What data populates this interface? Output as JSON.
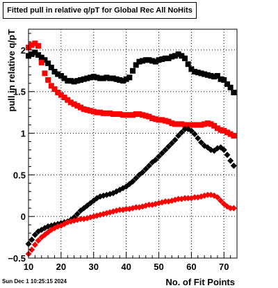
{
  "title": "Fitted pull in relative q/pT for Global Rec All NoHits",
  "timestamp": "Sun Dec  1 10:25:15 2024",
  "chart_data": {
    "type": "scatter",
    "title": "Fitted pull in relative q/pT for Global Rec All NoHits",
    "xlabel": "No. of Fit Points",
    "ylabel": "pull in relative q/pT",
    "xlim": [
      10,
      74
    ],
    "ylim": [
      -0.5,
      2.25
    ],
    "xticks": [
      10,
      20,
      30,
      40,
      50,
      60,
      70
    ],
    "xtick_labels": [
      "10",
      "20",
      "30",
      "40",
      "50",
      "60",
      "70"
    ],
    "yticks": [
      -0.5,
      0,
      0.5,
      1,
      1.5,
      2
    ],
    "ytick_labels": [
      "−0.5",
      "0",
      "0.5",
      "1",
      "1.5",
      "2"
    ],
    "grid": true,
    "colors": {
      "black": "#000000",
      "red": "#ff0000"
    },
    "series": [
      {
        "marker": "square",
        "color": "#000000",
        "x": [
          10,
          11,
          12,
          13,
          14,
          15,
          16,
          17,
          18,
          19,
          20,
          21,
          22,
          23,
          24,
          25,
          26,
          27,
          28,
          29,
          30,
          31,
          32,
          33,
          34,
          35,
          36,
          37,
          38,
          39,
          40,
          41,
          42,
          43,
          44,
          45,
          46,
          47,
          48,
          49,
          50,
          51,
          52,
          53,
          54,
          55,
          56,
          57,
          58,
          59,
          60,
          61,
          62,
          63,
          64,
          65,
          66,
          67,
          68,
          69,
          70,
          71,
          72,
          73
        ],
        "y": [
          1.93,
          1.95,
          1.97,
          1.94,
          1.91,
          1.88,
          1.84,
          1.79,
          1.74,
          1.71,
          1.69,
          1.66,
          1.63,
          1.63,
          1.62,
          1.63,
          1.64,
          1.65,
          1.66,
          1.67,
          1.68,
          1.67,
          1.66,
          1.66,
          1.67,
          1.66,
          1.66,
          1.65,
          1.64,
          1.63,
          1.65,
          1.67,
          1.75,
          1.82,
          1.86,
          1.87,
          1.88,
          1.88,
          1.87,
          1.86,
          1.88,
          1.89,
          1.9,
          1.9,
          1.92,
          1.93,
          1.95,
          1.93,
          1.9,
          1.83,
          1.77,
          1.74,
          1.73,
          1.72,
          1.71,
          1.7,
          1.69,
          1.68,
          1.69,
          1.65,
          1.64,
          1.59,
          1.55,
          1.49
        ]
      },
      {
        "marker": "square",
        "color": "#ff0000",
        "x": [
          10,
          11,
          12,
          13,
          14,
          15,
          16,
          17,
          18,
          19,
          20,
          21,
          22,
          23,
          24,
          25,
          26,
          27,
          28,
          29,
          30,
          31,
          32,
          33,
          34,
          35,
          36,
          37,
          38,
          39,
          40,
          41,
          42,
          43,
          44,
          45,
          46,
          47,
          48,
          49,
          50,
          51,
          52,
          53,
          54,
          55,
          56,
          57,
          58,
          59,
          60,
          61,
          62,
          63,
          64,
          65,
          66,
          67,
          68,
          69,
          70,
          71,
          72,
          73
        ],
        "y": [
          2.03,
          2.06,
          2.08,
          2.05,
          1.85,
          1.72,
          1.64,
          1.57,
          1.53,
          1.49,
          1.46,
          1.43,
          1.4,
          1.37,
          1.35,
          1.33,
          1.31,
          1.29,
          1.28,
          1.27,
          1.26,
          1.25,
          1.25,
          1.24,
          1.24,
          1.24,
          1.23,
          1.23,
          1.23,
          1.22,
          1.22,
          1.22,
          1.22,
          1.23,
          1.23,
          1.22,
          1.21,
          1.2,
          1.18,
          1.17,
          1.16,
          1.16,
          1.15,
          1.14,
          1.12,
          1.11,
          1.11,
          1.11,
          1.1,
          1.1,
          1.1,
          1.1,
          1.1,
          1.1,
          1.11,
          1.12,
          1.11,
          1.09,
          1.06,
          1.04,
          1.03,
          1.01,
          0.99,
          0.97
        ]
      },
      {
        "marker": "diamond",
        "color": "#000000",
        "x": [
          10,
          11,
          12,
          13,
          14,
          15,
          16,
          17,
          18,
          19,
          20,
          21,
          22,
          23,
          24,
          25,
          26,
          27,
          28,
          29,
          30,
          31,
          32,
          33,
          34,
          35,
          36,
          37,
          38,
          39,
          40,
          41,
          42,
          43,
          44,
          45,
          46,
          47,
          48,
          49,
          50,
          51,
          52,
          53,
          54,
          55,
          56,
          57,
          58,
          59,
          60,
          61,
          62,
          63,
          64,
          65,
          66,
          67,
          68,
          69,
          70,
          71,
          72,
          73
        ],
        "y": [
          -0.33,
          -0.28,
          -0.22,
          -0.18,
          -0.16,
          -0.14,
          -0.12,
          -0.11,
          -0.1,
          -0.09,
          -0.08,
          -0.07,
          -0.06,
          -0.04,
          -0.01,
          0.03,
          0.07,
          0.1,
          0.13,
          0.16,
          0.19,
          0.22,
          0.24,
          0.25,
          0.26,
          0.27,
          0.28,
          0.3,
          0.32,
          0.34,
          0.36,
          0.39,
          0.42,
          0.46,
          0.5,
          0.53,
          0.57,
          0.61,
          0.65,
          0.68,
          0.72,
          0.76,
          0.8,
          0.84,
          0.88,
          0.92,
          0.97,
          1.01,
          1.05,
          1.05,
          1.03,
          0.99,
          0.94,
          0.89,
          0.85,
          0.83,
          0.8,
          0.79,
          0.82,
          0.83,
          0.8,
          0.74,
          0.67,
          0.61
        ]
      },
      {
        "marker": "diamond",
        "color": "#ff0000",
        "x": [
          10,
          11,
          12,
          13,
          14,
          15,
          16,
          17,
          18,
          19,
          20,
          21,
          22,
          23,
          24,
          25,
          26,
          27,
          28,
          29,
          30,
          31,
          32,
          33,
          34,
          35,
          36,
          37,
          38,
          39,
          40,
          41,
          42,
          43,
          44,
          45,
          46,
          47,
          48,
          49,
          50,
          51,
          52,
          53,
          54,
          55,
          56,
          57,
          58,
          59,
          60,
          61,
          62,
          63,
          64,
          65,
          66,
          67,
          68,
          69,
          70,
          71,
          72,
          73
        ],
        "y": [
          -0.45,
          -0.4,
          -0.34,
          -0.29,
          -0.25,
          -0.22,
          -0.19,
          -0.16,
          -0.14,
          -0.12,
          -0.11,
          -0.09,
          -0.07,
          -0.06,
          -0.05,
          -0.04,
          -0.03,
          -0.03,
          -0.02,
          -0.01,
          0.0,
          0.01,
          0.02,
          0.03,
          0.04,
          0.05,
          0.06,
          0.07,
          0.08,
          0.08,
          0.09,
          0.09,
          0.1,
          0.11,
          0.11,
          0.12,
          0.13,
          0.14,
          0.14,
          0.15,
          0.16,
          0.17,
          0.18,
          0.18,
          0.19,
          0.2,
          0.21,
          0.21,
          0.22,
          0.22,
          0.22,
          0.23,
          0.23,
          0.24,
          0.25,
          0.26,
          0.26,
          0.25,
          0.23,
          0.19,
          0.15,
          0.12,
          0.1,
          0.1
        ]
      }
    ]
  }
}
